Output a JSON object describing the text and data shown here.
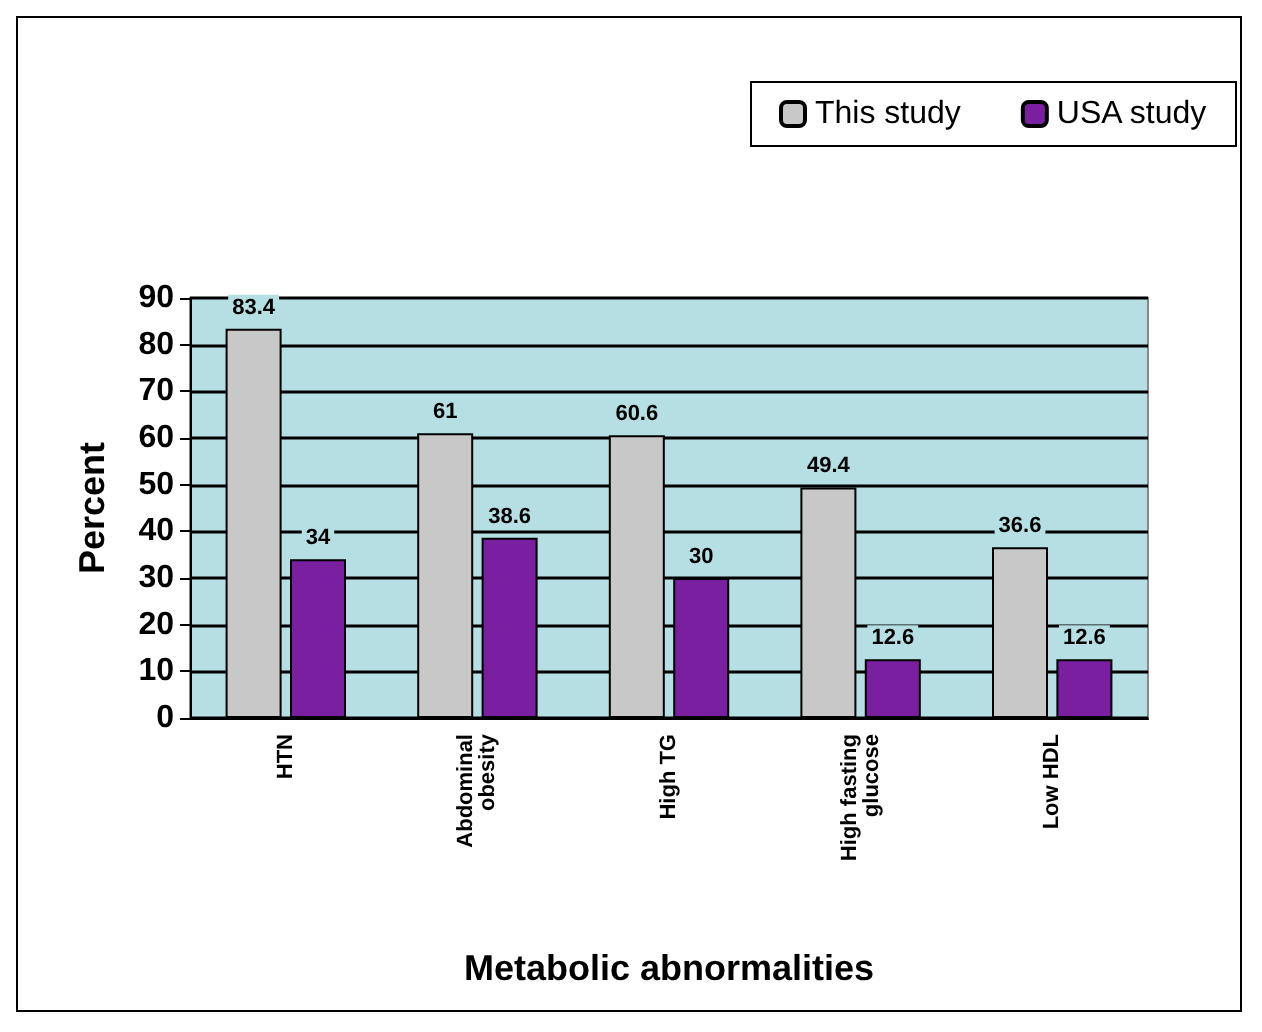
{
  "chart_data": {
    "type": "bar",
    "xlabel": "Metabolic abnormalities",
    "ylabel": "Percent",
    "categories": [
      "HTN",
      "Abdominal obesity",
      "High TG",
      "High fasting glucose",
      "Low HDL"
    ],
    "series": [
      {
        "name": "This study",
        "color": "#c8c8c8",
        "values": [
          83.4,
          61,
          60.6,
          49.4,
          36.6
        ]
      },
      {
        "name": "USA study",
        "color": "#7a1fa0",
        "values": [
          34,
          38.6,
          30,
          12.6,
          12.6
        ]
      }
    ],
    "ylim": [
      0,
      90
    ],
    "yticks": [
      0,
      10,
      20,
      30,
      40,
      50,
      60,
      70,
      80,
      90
    ],
    "grid": "y",
    "legend": "top right",
    "data_labels": true
  }
}
